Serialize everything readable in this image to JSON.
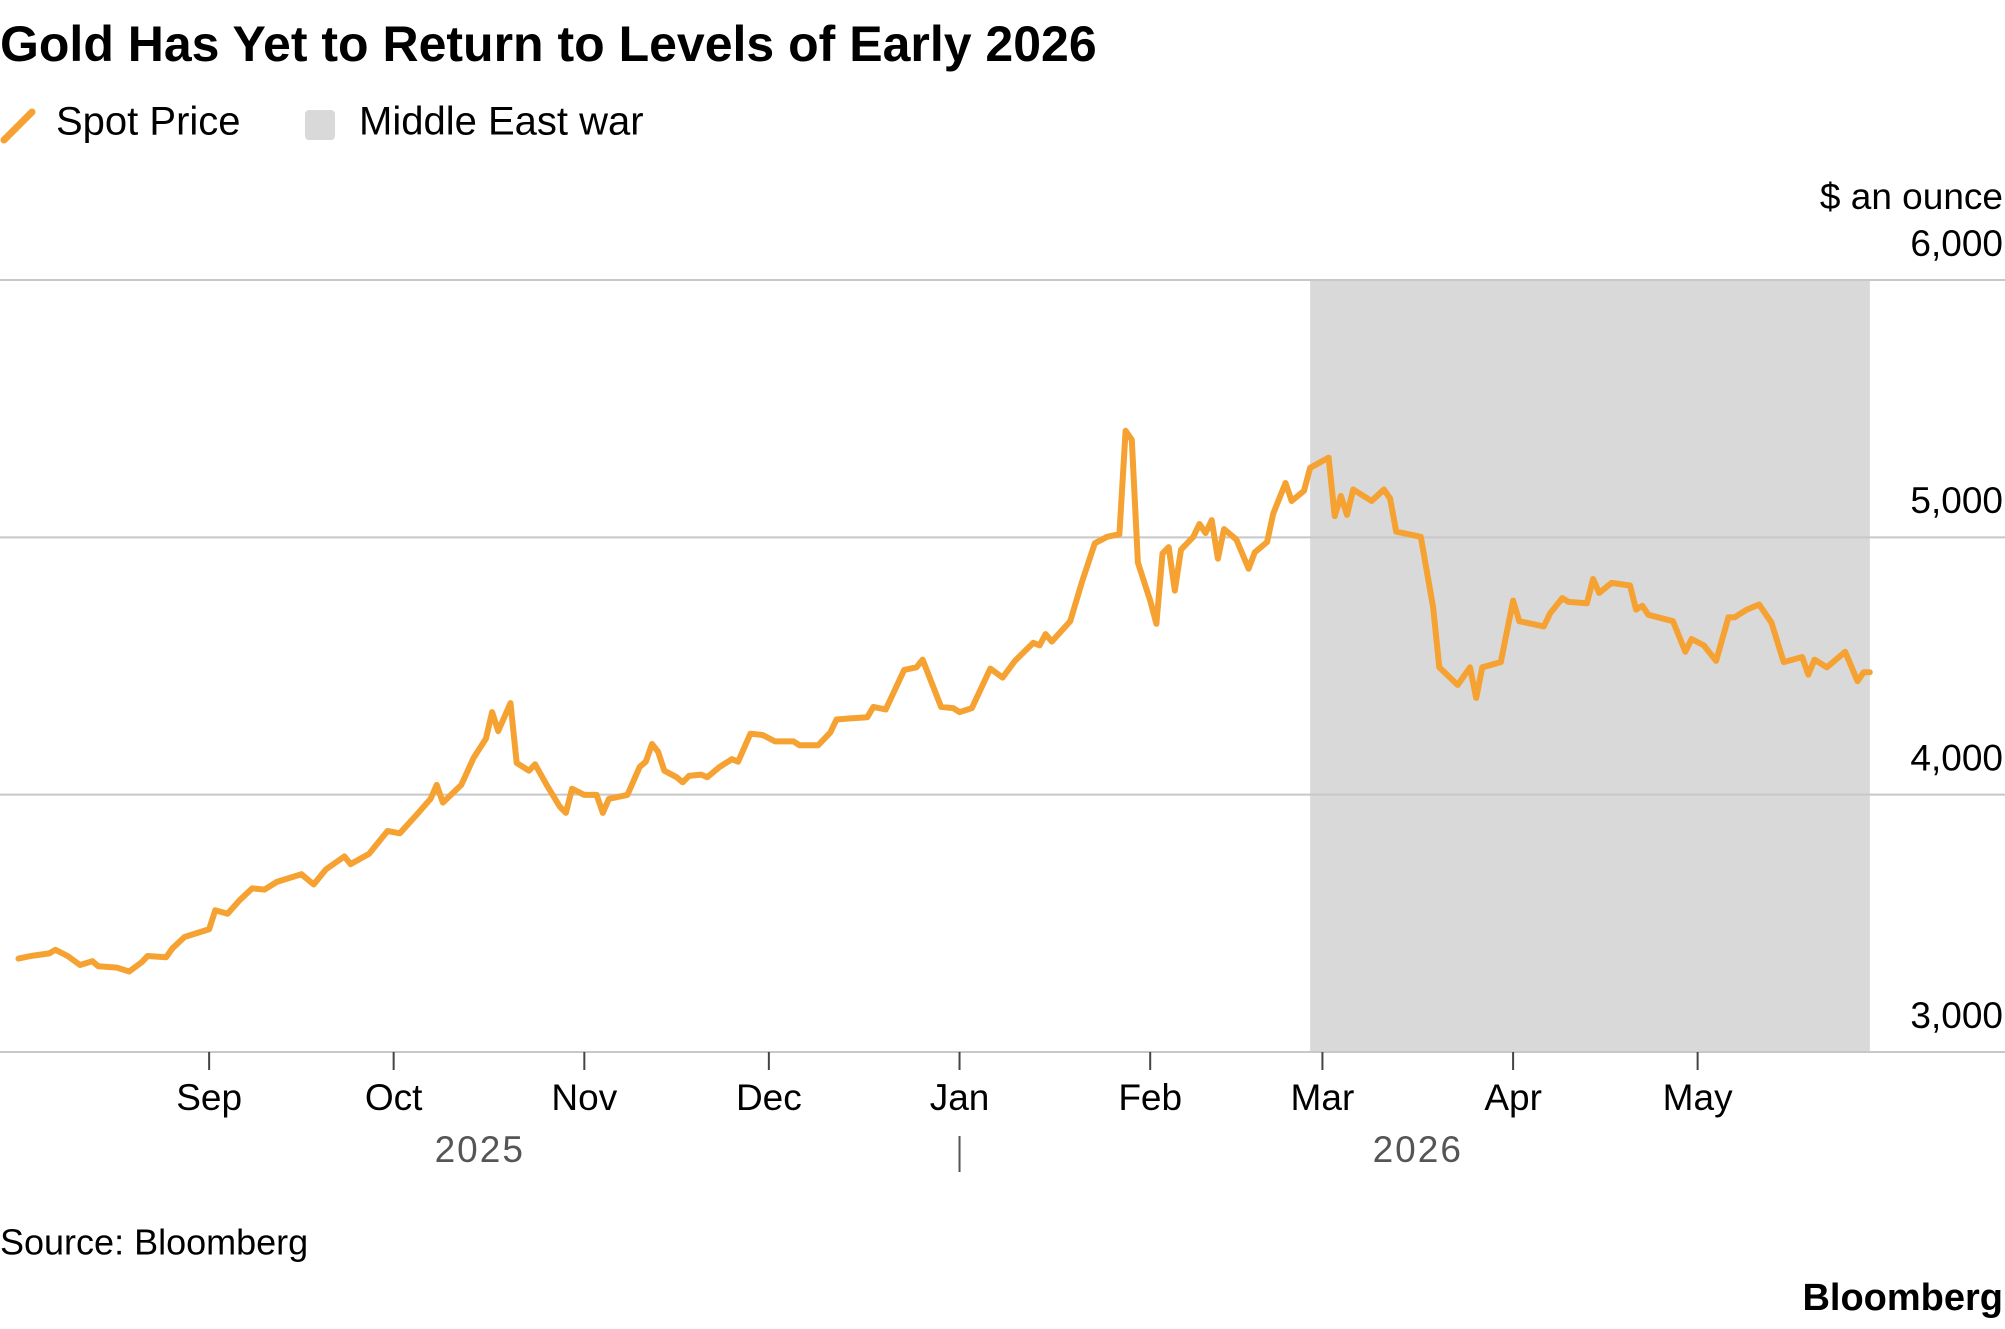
{
  "chart_data": {
    "type": "line",
    "title": "Gold Has Yet to Return to Levels of Early 2026",
    "y_unit": "$ an ounce",
    "source": "Source: Bloomberg",
    "brand": "Bloomberg",
    "years": [
      "2025",
      "2026"
    ],
    "x": [
      -31,
      -29,
      -26,
      -25,
      -23,
      -21,
      -19,
      -18,
      -15,
      -13,
      -11,
      -10,
      -7,
      -6,
      -4,
      0,
      1,
      3,
      5,
      7,
      9,
      11,
      15,
      17,
      19,
      22,
      23,
      26,
      29,
      31,
      34,
      36,
      37,
      38,
      41,
      43,
      45,
      46,
      47,
      49,
      50,
      52,
      53,
      55,
      57,
      58,
      59,
      61,
      63,
      64,
      65,
      68,
      70,
      71,
      72,
      73,
      74,
      76,
      77,
      78,
      80,
      81,
      83,
      85,
      86,
      87,
      88,
      90,
      92,
      95,
      96,
      99,
      101,
      102,
      104,
      107,
      108,
      110,
      113,
      115,
      116,
      119,
      121,
      122,
      124,
      127,
      129,
      131,
      134,
      135,
      136,
      137,
      140,
      142,
      144,
      146,
      148,
      149,
      150,
      151,
      153,
      154,
      155,
      156,
      157,
      158,
      160,
      161,
      162,
      163,
      164,
      165,
      167,
      169,
      170,
      172,
      173,
      175,
      176,
      178,
      179,
      182,
      183,
      184,
      185,
      186,
      189,
      191,
      192,
      193,
      197,
      199,
      200,
      203,
      205,
      206,
      207,
      210,
      212,
      213,
      217,
      218,
      220,
      221,
      224,
      225,
      226,
      228,
      231,
      232,
      233,
      234,
      238,
      240,
      241,
      243,
      245,
      247,
      248,
      250,
      252,
      254,
      256,
      259,
      260,
      261,
      263,
      266,
      268,
      269,
      270
    ],
    "series": [
      {
        "name": "Spot Price",
        "color": "#f5a232",
        "values": [
          3363,
          3373,
          3383,
          3397,
          3373,
          3338,
          3353,
          3333,
          3328,
          3313,
          3348,
          3373,
          3368,
          3402,
          3447,
          3477,
          3551,
          3537,
          3591,
          3636,
          3631,
          3661,
          3691,
          3651,
          3710,
          3760,
          3730,
          3770,
          3859,
          3850,
          3929,
          3984,
          4038,
          3969,
          4038,
          4143,
          4217,
          4321,
          4247,
          4356,
          4123,
          4093,
          4118,
          4033,
          3954,
          3929,
          4023,
          3999,
          3999,
          3929,
          3984,
          3999,
          4108,
          4128,
          4197,
          4167,
          4093,
          4068,
          4048,
          4073,
          4078,
          4068,
          4108,
          4138,
          4128,
          4182,
          4237,
          4232,
          4207,
          4207,
          4192,
          4192,
          4242,
          4292,
          4296,
          4301,
          4341,
          4331,
          4485,
          4495,
          4525,
          4341,
          4336,
          4321,
          4336,
          4490,
          4455,
          4520,
          4590,
          4580,
          4624,
          4595,
          4674,
          4833,
          4977,
          5002,
          5012,
          5414,
          5379,
          4902,
          4754,
          4664,
          4937,
          4962,
          4793,
          4952,
          5002,
          5052,
          5017,
          5067,
          4917,
          5032,
          4992,
          4878,
          4942,
          4982,
          5092,
          5211,
          5141,
          5181,
          5270,
          5310,
          5082,
          5161,
          5087,
          5186,
          5141,
          5186,
          5151,
          5022,
          5002,
          4729,
          4495,
          4426,
          4495,
          4376,
          4495,
          4515,
          4754,
          4674,
          4654,
          4704,
          4764,
          4749,
          4744,
          4838,
          4784,
          4823,
          4813,
          4719,
          4734,
          4699,
          4674,
          4555,
          4605,
          4580,
          4520,
          4689,
          4689,
          4719,
          4739,
          4669,
          4515,
          4535,
          4466,
          4525,
          4495,
          4555,
          4441,
          4476,
          4476
        ]
      }
    ],
    "shaded_region": {
      "name": "Middle East war",
      "x": [
        179,
        270
      ],
      "color": "#d9d9d9"
    },
    "xlim": [
      -34,
      271
    ],
    "xticks": [
      {
        "value": 0,
        "label": "Sep"
      },
      {
        "value": 30,
        "label": "Oct"
      },
      {
        "value": 61,
        "label": "Nov"
      },
      {
        "value": 91,
        "label": "Dec"
      },
      {
        "value": 122,
        "label": "Jan"
      },
      {
        "value": 153,
        "label": "Feb"
      },
      {
        "value": 181,
        "label": "Mar"
      },
      {
        "value": 212,
        "label": "Apr"
      },
      {
        "value": 242,
        "label": "May"
      }
    ],
    "ylim": [
      3000,
      6000
    ],
    "yticks": [
      {
        "value": 3000,
        "label": "3,000"
      },
      {
        "value": 4000,
        "label": "4,000"
      },
      {
        "value": 5000,
        "label": "5,000"
      },
      {
        "value": 6000,
        "label": "6,000"
      }
    ],
    "grid": true
  }
}
